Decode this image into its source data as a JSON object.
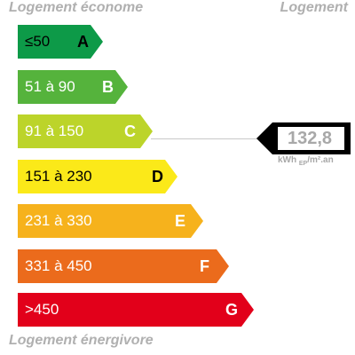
{
  "labels": {
    "top_left": "Logement économe",
    "top_right": "Logement",
    "bottom": "Logement énergivore"
  },
  "bands": [
    {
      "range": "≤50",
      "letter": "A",
      "color": "#0d9a48",
      "text": "dark"
    },
    {
      "range": "51 à 90",
      "letter": "B",
      "color": "#55b33c",
      "text": "light"
    },
    {
      "range": "91 à 150",
      "letter": "C",
      "color": "#bcd42a",
      "text": "light"
    },
    {
      "range": "151 à 230",
      "letter": "D",
      "color": "#fbe919",
      "text": "dark"
    },
    {
      "range": "231 à 330",
      "letter": "E",
      "color": "#f6b21c",
      "text": "light"
    },
    {
      "range": "331 à 450",
      "letter": "F",
      "color": "#eb6b1c",
      "text": "light"
    },
    {
      "range": ">450",
      "letter": "G",
      "color": "#e2001a",
      "text": "light"
    }
  ],
  "indicator": {
    "value": "132,8",
    "unit_main": "kWh",
    "unit_sub": "EP",
    "unit_tail": "/m².an",
    "band": "C"
  }
}
